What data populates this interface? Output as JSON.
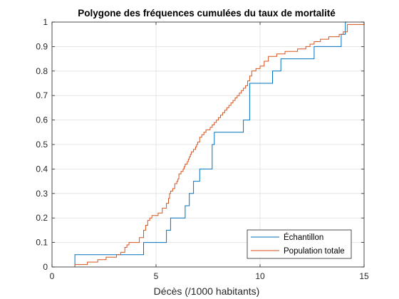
{
  "chart_data": {
    "type": "line",
    "title": "Polygone des fréquences cumulées du taux de mortalité",
    "xlabel": "Décès (/1000 habitants)",
    "ylabel": "",
    "xlim": [
      0,
      15
    ],
    "ylim": [
      0,
      1
    ],
    "xticks": [
      "0",
      "5",
      "10",
      "15"
    ],
    "yticks": [
      "0",
      "0.1",
      "0.2",
      "0.3",
      "0.4",
      "0.5",
      "0.6",
      "0.7",
      "0.8",
      "0.9",
      "1"
    ],
    "grid": true,
    "legend_position": "bottom-right",
    "step": true,
    "series": [
      {
        "name": "Échantillon",
        "color": "#0072BD",
        "x": [
          1.1,
          4.4,
          5.5,
          5.7,
          6.4,
          6.6,
          6.8,
          7.1,
          7.7,
          7.8,
          9.2,
          9.5,
          10.6,
          11.0,
          12.6,
          13.9,
          14.1,
          14.2
        ],
        "y": [
          0.05,
          0.1,
          0.15,
          0.2,
          0.25,
          0.3,
          0.35,
          0.4,
          0.5,
          0.55,
          0.6,
          0.75,
          0.8,
          0.85,
          0.9,
          0.95,
          1.0,
          1.0
        ]
      },
      {
        "name": "Population totale",
        "color": "#D95319",
        "x": [
          1.1,
          1.7,
          2.2,
          2.6,
          3.1,
          3.3,
          3.5,
          3.6,
          3.7,
          4.2,
          4.4,
          4.5,
          4.6,
          4.7,
          4.8,
          5.1,
          5.3,
          5.5,
          5.6,
          5.65,
          5.7,
          5.8,
          5.9,
          6.0,
          6.05,
          6.1,
          6.2,
          6.3,
          6.35,
          6.4,
          6.5,
          6.55,
          6.6,
          6.65,
          6.7,
          6.8,
          6.9,
          6.95,
          7.0,
          7.1,
          7.2,
          7.3,
          7.4,
          7.6,
          7.7,
          7.8,
          7.9,
          8.0,
          8.1,
          8.2,
          8.3,
          8.4,
          8.5,
          8.6,
          8.7,
          8.8,
          8.9,
          9.0,
          9.1,
          9.2,
          9.3,
          9.4,
          9.5,
          9.6,
          9.8,
          10.0,
          10.2,
          10.4,
          10.8,
          11.2,
          11.8,
          12.2,
          12.4,
          12.6,
          12.9,
          13.3,
          13.8,
          14.0,
          14.2,
          15.0
        ],
        "y": [
          0.01,
          0.02,
          0.03,
          0.04,
          0.05,
          0.06,
          0.08,
          0.09,
          0.1,
          0.12,
          0.15,
          0.17,
          0.19,
          0.2,
          0.21,
          0.22,
          0.24,
          0.26,
          0.28,
          0.3,
          0.31,
          0.32,
          0.34,
          0.35,
          0.36,
          0.38,
          0.39,
          0.4,
          0.41,
          0.42,
          0.43,
          0.44,
          0.45,
          0.46,
          0.47,
          0.48,
          0.49,
          0.5,
          0.51,
          0.53,
          0.54,
          0.55,
          0.56,
          0.57,
          0.58,
          0.59,
          0.6,
          0.61,
          0.62,
          0.63,
          0.64,
          0.65,
          0.66,
          0.67,
          0.68,
          0.69,
          0.7,
          0.71,
          0.72,
          0.73,
          0.74,
          0.76,
          0.78,
          0.8,
          0.81,
          0.82,
          0.84,
          0.86,
          0.87,
          0.88,
          0.89,
          0.9,
          0.91,
          0.92,
          0.93,
          0.94,
          0.95,
          0.96,
          0.99,
          1.0
        ]
      }
    ]
  }
}
